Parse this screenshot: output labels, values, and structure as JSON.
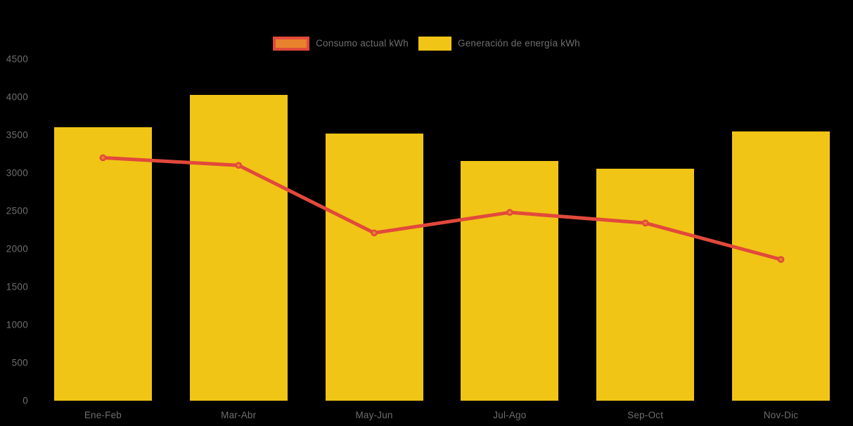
{
  "legend": {
    "items": [
      {
        "label": "Consumo actual kWh",
        "swatch": "line-marker-swatch"
      },
      {
        "label": "Generación de energía kWh",
        "swatch": "bar-swatch"
      }
    ]
  },
  "colors": {
    "background": "#000000",
    "bar": "#F0C516",
    "line": "#E2493B",
    "marker_fill": "#E8822C",
    "axis_text": "#6E6E6E"
  },
  "chart_data": {
    "type": "bar",
    "title": "",
    "categories": [
      "Ene-Feb",
      "Mar-Abr",
      "May-Jun",
      "Jul-Ago",
      "Sep-Oct",
      "Nov-Dic"
    ],
    "series": [
      {
        "name": "Consumo actual kWh",
        "type": "line",
        "values": [
          3200,
          3100,
          2210,
          2480,
          2340,
          1860
        ]
      },
      {
        "name": "Generación de energía kWh",
        "type": "bar",
        "values": [
          3600,
          4030,
          3520,
          3160,
          3060,
          3550
        ]
      }
    ],
    "ylim": [
      0,
      4500
    ],
    "ytick_step": 500,
    "ytick_labels": [
      "0",
      "500",
      "1000",
      "1500",
      "2000",
      "2500",
      "3000",
      "3500",
      "4000",
      "4500"
    ],
    "grid": false,
    "legend_position": "top-center"
  }
}
